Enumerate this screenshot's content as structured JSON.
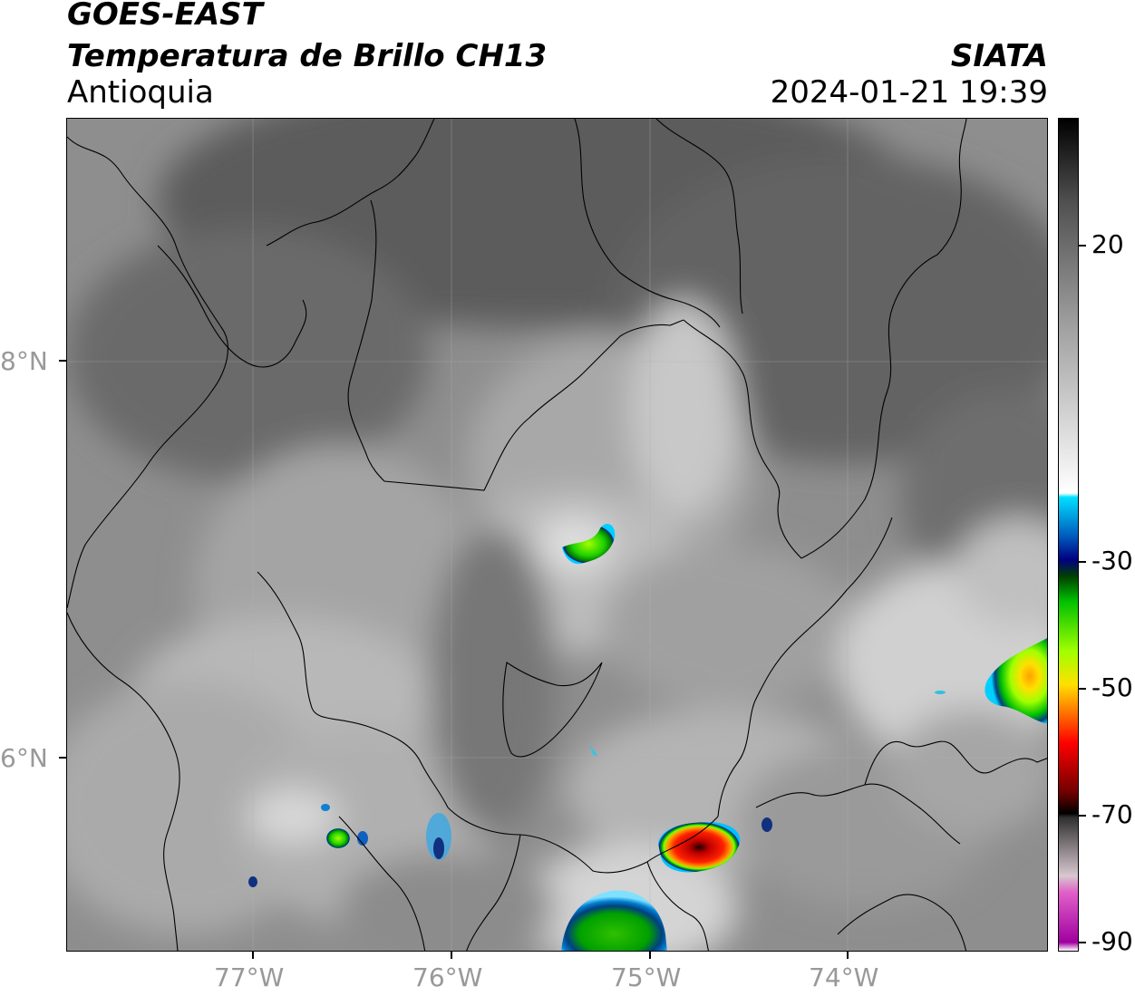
{
  "header": {
    "title_line1": "GOES-EAST",
    "title_line2": "Temperatura de Brillo CH13",
    "title_line3": "Antioquia",
    "right_line1": "SIATA",
    "right_line2": "2024-01-21 19:39"
  },
  "axes": {
    "lat_labels": [
      "8°N",
      "6°N"
    ],
    "lon_labels": [
      "77°W",
      "76°W",
      "75°W",
      "74°W"
    ]
  },
  "colorbar": {
    "tick_labels": [
      "20",
      "-30",
      "-50",
      "-70",
      "-90"
    ],
    "stops": [
      {
        "t": 0,
        "color": "#ffffff"
      },
      {
        "t": 0.01,
        "color": "#a000a0"
      },
      {
        "t": 0.07,
        "color": "#e060c8"
      },
      {
        "t": 0.09,
        "color": "#d8c8d0"
      },
      {
        "t": 0.16,
        "color": "#303030"
      },
      {
        "t": 0.165,
        "color": "#000000"
      },
      {
        "t": 0.19,
        "color": "#700000"
      },
      {
        "t": 0.25,
        "color": "#ff0000"
      },
      {
        "t": 0.29,
        "color": "#ff8000"
      },
      {
        "t": 0.32,
        "color": "#ffe000"
      },
      {
        "t": 0.36,
        "color": "#a0ff00"
      },
      {
        "t": 0.42,
        "color": "#00c000"
      },
      {
        "t": 0.45,
        "color": "#004000"
      },
      {
        "t": 0.47,
        "color": "#000080"
      },
      {
        "t": 0.5,
        "color": "#0060c0"
      },
      {
        "t": 0.545,
        "color": "#00e0ff"
      },
      {
        "t": 0.55,
        "color": "#ffffff"
      },
      {
        "t": 0.75,
        "color": "#a0a0a0"
      },
      {
        "t": 0.9,
        "color": "#505050"
      },
      {
        "t": 1.0,
        "color": "#000000"
      }
    ]
  },
  "map": {
    "background_color": "#8a8a8a"
  }
}
